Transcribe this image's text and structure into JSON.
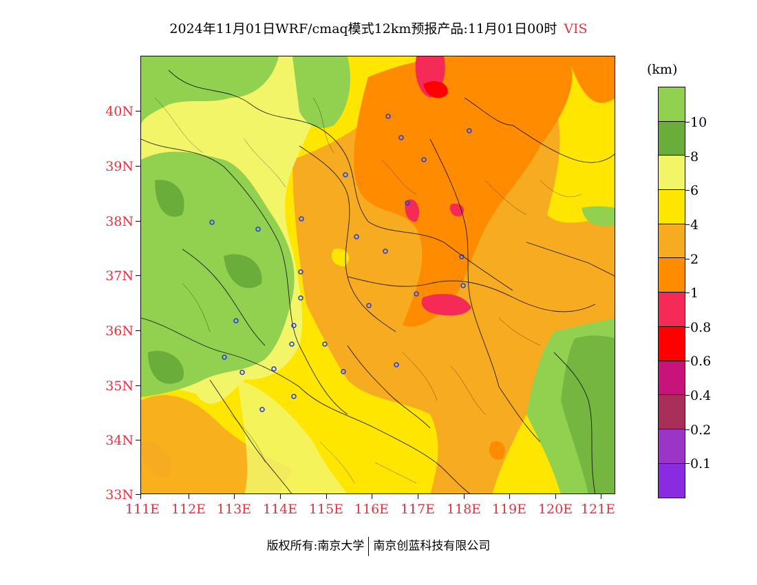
{
  "title": {
    "main": "2024年11月01日WRF/cmaq模式12km预报产品:11月01日00时",
    "variable": "VIS"
  },
  "axes": {
    "lat_labels": [
      "40N",
      "39N",
      "38N",
      "37N",
      "36N",
      "35N",
      "34N",
      "33N"
    ],
    "lon_labels": [
      "111E",
      "112E",
      "113E",
      "114E",
      "115E",
      "116E",
      "117E",
      "118E",
      "119E",
      "120E",
      "121E"
    ]
  },
  "colorbar": {
    "unit": "(km)",
    "colors_top_to_bottom": [
      "#92d050",
      "#6aad3a",
      "#f2f568",
      "#ffe600",
      "#f7ab20",
      "#ff8c00",
      "#f52a56",
      "#ff0000",
      "#c8137a",
      "#aa2e5a",
      "#9b35c8",
      "#8a2be2"
    ],
    "labels_top_to_bottom": [
      "10",
      "8",
      "6",
      "4",
      "2",
      "1",
      "0.8",
      "0.6",
      "0.4",
      "0.2",
      "0.1"
    ]
  },
  "footer": {
    "left": "版权所有:南京大学",
    "right": "南京创蓝科技有限公司"
  },
  "colors": {
    "label_red": "#e8323c",
    "station_blue": "#2040e0"
  }
}
